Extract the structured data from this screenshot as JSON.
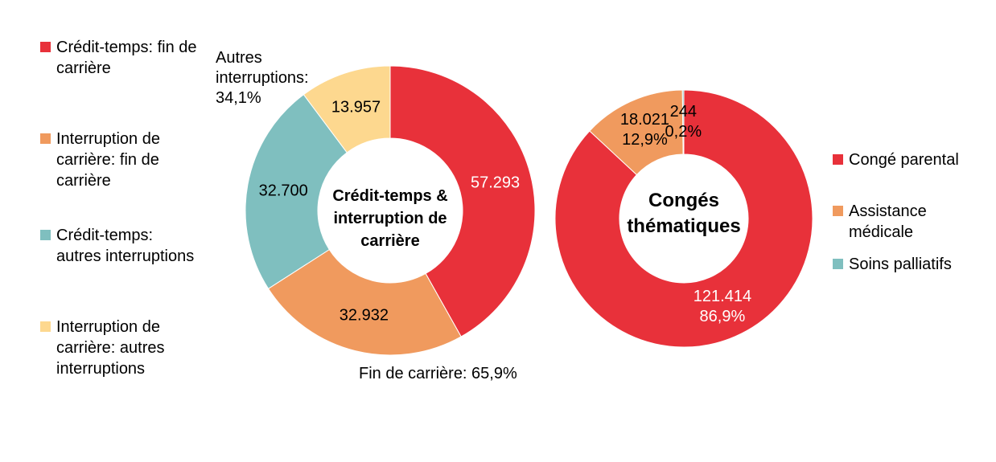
{
  "chart_data": [
    {
      "type": "donut",
      "center_label": "Crédit-temps & interruption de carrière",
      "categories": [
        "Crédit-temps: fin de carrière",
        "Interruption de carrière: fin de carrière",
        "Crédit-temps: autres interruptions",
        "Interruption de carrière: autres interruptions"
      ],
      "values": [
        57293,
        32932,
        32700,
        13957
      ],
      "value_labels": [
        "57.293",
        "32.932",
        "32.700",
        "13.957"
      ],
      "colors": [
        "#e8313a",
        "#f09a5e",
        "#7fbfbf",
        "#fdd88f"
      ],
      "annotations": [
        "Fin de carrière: 65,9%",
        "Autres interruptions: 34,1%"
      ]
    },
    {
      "type": "donut",
      "center_label": "Congés thématiques",
      "categories": [
        "Congé parental",
        "Assistance médicale",
        "Soins palliatifs"
      ],
      "values": [
        121414,
        18021,
        244
      ],
      "value_labels": [
        "121.414",
        "18.021",
        "244"
      ],
      "percent_labels": [
        "86,9%",
        "12,9%",
        "0,2%"
      ],
      "colors": [
        "#e8313a",
        "#f09a5e",
        "#7fbfbf"
      ]
    }
  ]
}
